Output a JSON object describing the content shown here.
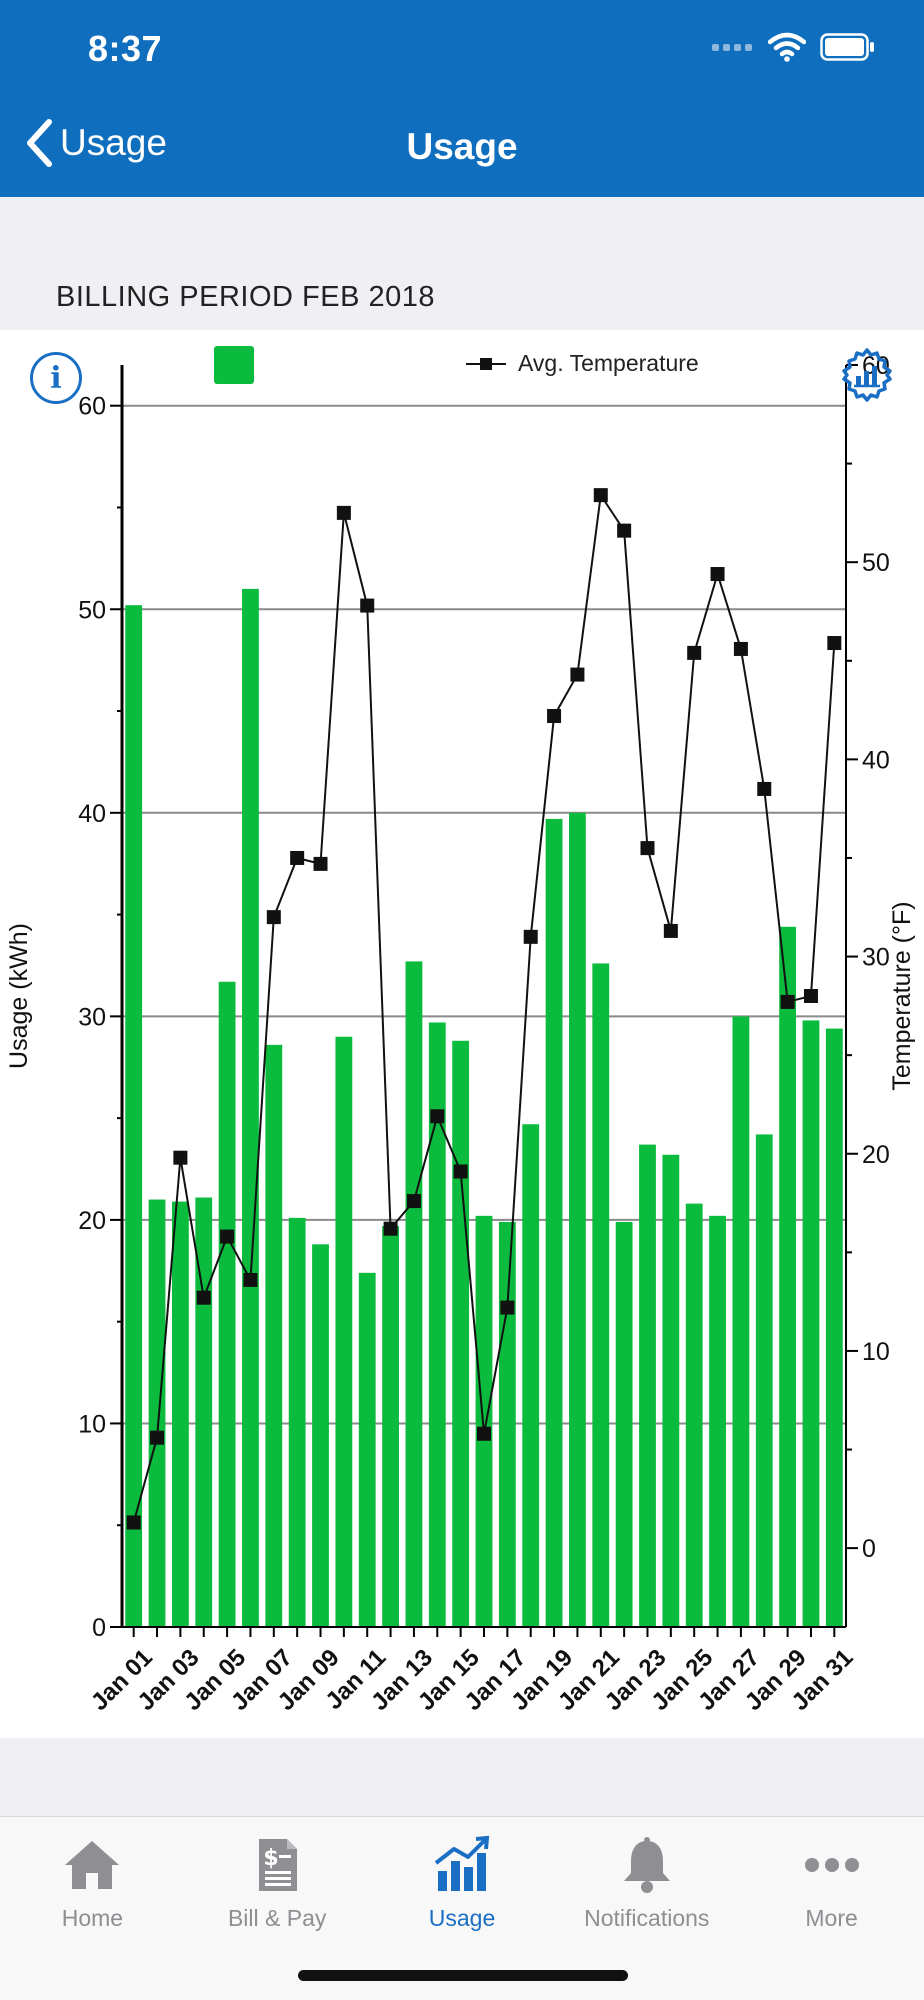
{
  "status_bar": {
    "time": "8:37"
  },
  "nav": {
    "back_label": "Usage",
    "title": "Usage"
  },
  "billing_period": "BILLING PERIOD FEB 2018",
  "legend": {
    "temp_label": "Avg. Temperature"
  },
  "colors": {
    "header": "#0f6ebd",
    "bar": "#0bbb3d",
    "accent": "#1a6fc4",
    "line": "#111111"
  },
  "chart_data": {
    "type": "bar",
    "categories": [
      "Jan 01",
      "Jan 02",
      "Jan 03",
      "Jan 04",
      "Jan 05",
      "Jan 06",
      "Jan 07",
      "Jan 08",
      "Jan 09",
      "Jan 10",
      "Jan 11",
      "Jan 12",
      "Jan 13",
      "Jan 14",
      "Jan 15",
      "Jan 16",
      "Jan 17",
      "Jan 18",
      "Jan 19",
      "Jan 20",
      "Jan 21",
      "Jan 22",
      "Jan 23",
      "Jan 24",
      "Jan 25",
      "Jan 26",
      "Jan 27",
      "Jan 28",
      "Jan 29",
      "Jan 30",
      "Jan 31"
    ],
    "tick_labels": [
      "Jan 01",
      "Jan 03",
      "Jan 05",
      "Jan 07",
      "Jan 09",
      "Jan 11",
      "Jan 13",
      "Jan 15",
      "Jan 17",
      "Jan 19",
      "Jan 21",
      "Jan 23",
      "Jan 25",
      "Jan 27",
      "Jan 29",
      "Jan 31"
    ],
    "series": [
      {
        "type": "bar",
        "axis": "left",
        "values": [
          50.2,
          21.0,
          20.9,
          21.1,
          31.7,
          51.0,
          28.6,
          20.1,
          18.8,
          29.0,
          17.4,
          19.7,
          32.7,
          29.7,
          28.8,
          20.2,
          19.9,
          24.7,
          39.7,
          40.0,
          32.6,
          19.9,
          23.7,
          23.2,
          20.8,
          20.2,
          30.0,
          24.2,
          34.4,
          29.8,
          29.4
        ]
      },
      {
        "type": "line",
        "axis": "right",
        "name": "Avg. Temperature",
        "values": [
          1.3,
          5.6,
          19.8,
          12.7,
          15.8,
          13.6,
          32.0,
          35.0,
          34.7,
          52.5,
          47.8,
          16.2,
          17.6,
          21.9,
          19.1,
          5.8,
          12.2,
          31.0,
          42.2,
          44.3,
          53.4,
          51.6,
          35.5,
          31.3,
          45.4,
          49.4,
          45.6,
          38.5,
          27.7,
          28.0,
          45.9
        ]
      }
    ],
    "ylabel": "Usage (kWh)",
    "y2label": "Temperature (°F)",
    "ylim": [
      0,
      62
    ],
    "yticks": [
      0,
      10,
      20,
      30,
      40,
      50,
      60
    ],
    "y2lim": [
      -4,
      60
    ],
    "y2ticks": [
      0,
      10,
      20,
      30,
      40,
      50,
      60
    ],
    "grid": true,
    "legend_position": "top"
  },
  "tabs": [
    {
      "label": "Home",
      "icon": "home-icon",
      "active": false
    },
    {
      "label": "Bill & Pay",
      "icon": "bill-icon",
      "active": false
    },
    {
      "label": "Usage",
      "icon": "usage-chart-icon",
      "active": true
    },
    {
      "label": "Notifications",
      "icon": "bell-icon",
      "active": false
    },
    {
      "label": "More",
      "icon": "more-icon",
      "active": false
    }
  ]
}
